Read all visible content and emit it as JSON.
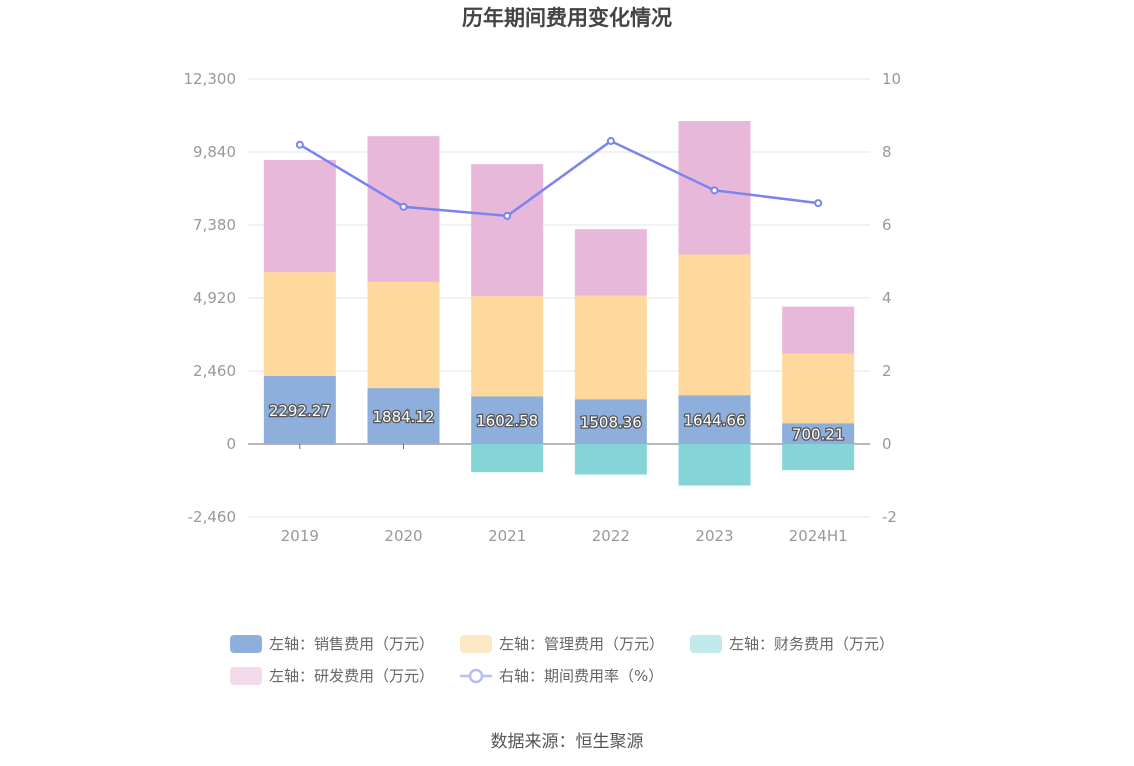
{
  "chart_data": {
    "type": "bar",
    "title": "历年期间费用变化情况",
    "categories": [
      "2019",
      "2020",
      "2021",
      "2022",
      "2023",
      "2024H1"
    ],
    "left_axis": {
      "ticks": [
        "12,300",
        "9,840",
        "7,380",
        "4,920",
        "2,460",
        "0",
        "-2,460"
      ],
      "range": [
        -2460,
        12300
      ]
    },
    "right_axis": {
      "ticks": [
        "10",
        "8",
        "6",
        "4",
        "2",
        "0",
        "-2"
      ],
      "range": [
        -2,
        10
      ]
    },
    "series": [
      {
        "name": "左轴：销售费用（万元）",
        "axis": "left",
        "kind": "bar",
        "color": "#8eaedb",
        "values": [
          2292.27,
          1884.12,
          1602.58,
          1508.36,
          1644.66,
          700.21
        ],
        "labels": [
          "2292.27",
          "1884.12",
          "1602.58",
          "1508.36",
          "1644.66",
          "700.21"
        ]
      },
      {
        "name": "左轴：管理费用（万元）",
        "axis": "left",
        "kind": "bar",
        "color": "#fed89d",
        "values": [
          3500,
          3580,
          3380,
          3490,
          4740,
          2350
        ]
      },
      {
        "name": "左轴：财务费用（万元）",
        "axis": "left",
        "kind": "bar",
        "color": "#85d5d8",
        "values": [
          0,
          0,
          -950,
          -1030,
          -1400,
          -880
        ]
      },
      {
        "name": "左轴：研发费用（万元）",
        "axis": "left",
        "kind": "bar",
        "color": "#e8b8da",
        "values": [
          3780,
          4910,
          4450,
          2240,
          4500,
          1580
        ]
      },
      {
        "name": "右轴：期间费用率（%）",
        "axis": "right",
        "kind": "line",
        "color": "#7b84ee",
        "values": [
          8.2,
          6.5,
          6.25,
          8.3,
          6.95,
          6.6
        ]
      }
    ],
    "legend": [
      {
        "label": "左轴：销售费用（万元）",
        "color": "#8eaedb",
        "kind": "bar",
        "active": true
      },
      {
        "label": "左轴：管理费用（万元）",
        "color": "#fde8c5",
        "kind": "bar",
        "active": false
      },
      {
        "label": "左轴：财务费用（万元）",
        "color": "#bfe9ea",
        "kind": "bar",
        "active": false
      },
      {
        "label": "左轴：研发费用（万元）",
        "color": "#f3d9ec",
        "kind": "bar",
        "active": false
      },
      {
        "label": "右轴：期间费用率（%）",
        "color": "#b7bcf5",
        "kind": "line",
        "active": false
      }
    ],
    "source": "数据来源：恒生聚源",
    "grid": true,
    "legend_placement": "bottom"
  }
}
